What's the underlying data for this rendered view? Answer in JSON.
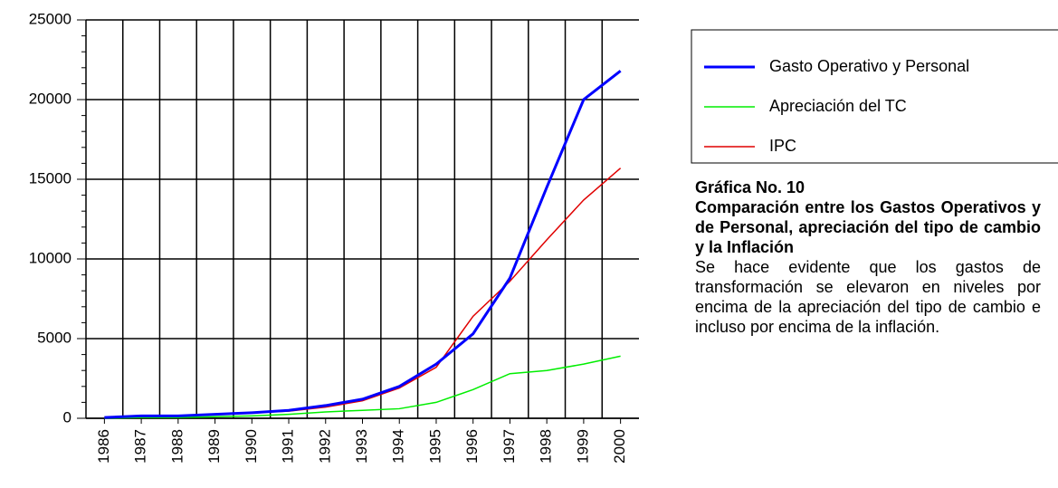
{
  "chart_data": {
    "type": "line",
    "categories": [
      "1986",
      "1987",
      "1988",
      "1989",
      "1990",
      "1991",
      "1992",
      "1993",
      "1994",
      "1995",
      "1996",
      "1997",
      "1998",
      "1999",
      "2000"
    ],
    "series": [
      {
        "name": "Gasto Operativo y Personal",
        "color": "#0000ff",
        "values": [
          50,
          150,
          150,
          250,
          350,
          500,
          800,
          1200,
          2000,
          3400,
          5300,
          8800,
          14500,
          20000,
          21800
        ]
      },
      {
        "name": "Apreciación del TC",
        "color": "#00ee00",
        "values": [
          0,
          50,
          50,
          100,
          150,
          250,
          400,
          500,
          600,
          1000,
          1800,
          2800,
          3000,
          3400,
          3900
        ]
      },
      {
        "name": "IPC",
        "color": "#e00000",
        "values": [
          50,
          150,
          150,
          250,
          350,
          450,
          700,
          1100,
          1900,
          3200,
          6400,
          8600,
          11200,
          13700,
          15700
        ]
      }
    ],
    "ylim": [
      0,
      25000
    ],
    "yticks": [
      0,
      5000,
      10000,
      15000,
      20000,
      25000
    ],
    "grid": true
  },
  "caption": {
    "label": "Gráfica No. 10",
    "title": "Comparación entre los Gastos Operativos y de Personal, apreciación del tipo de cambio y la Inflación",
    "text": "Se hace evidente que los gastos de transformación se elevaron en niveles por encima de la apreciación del tipo de cambio e incluso por encima de la inflación."
  }
}
